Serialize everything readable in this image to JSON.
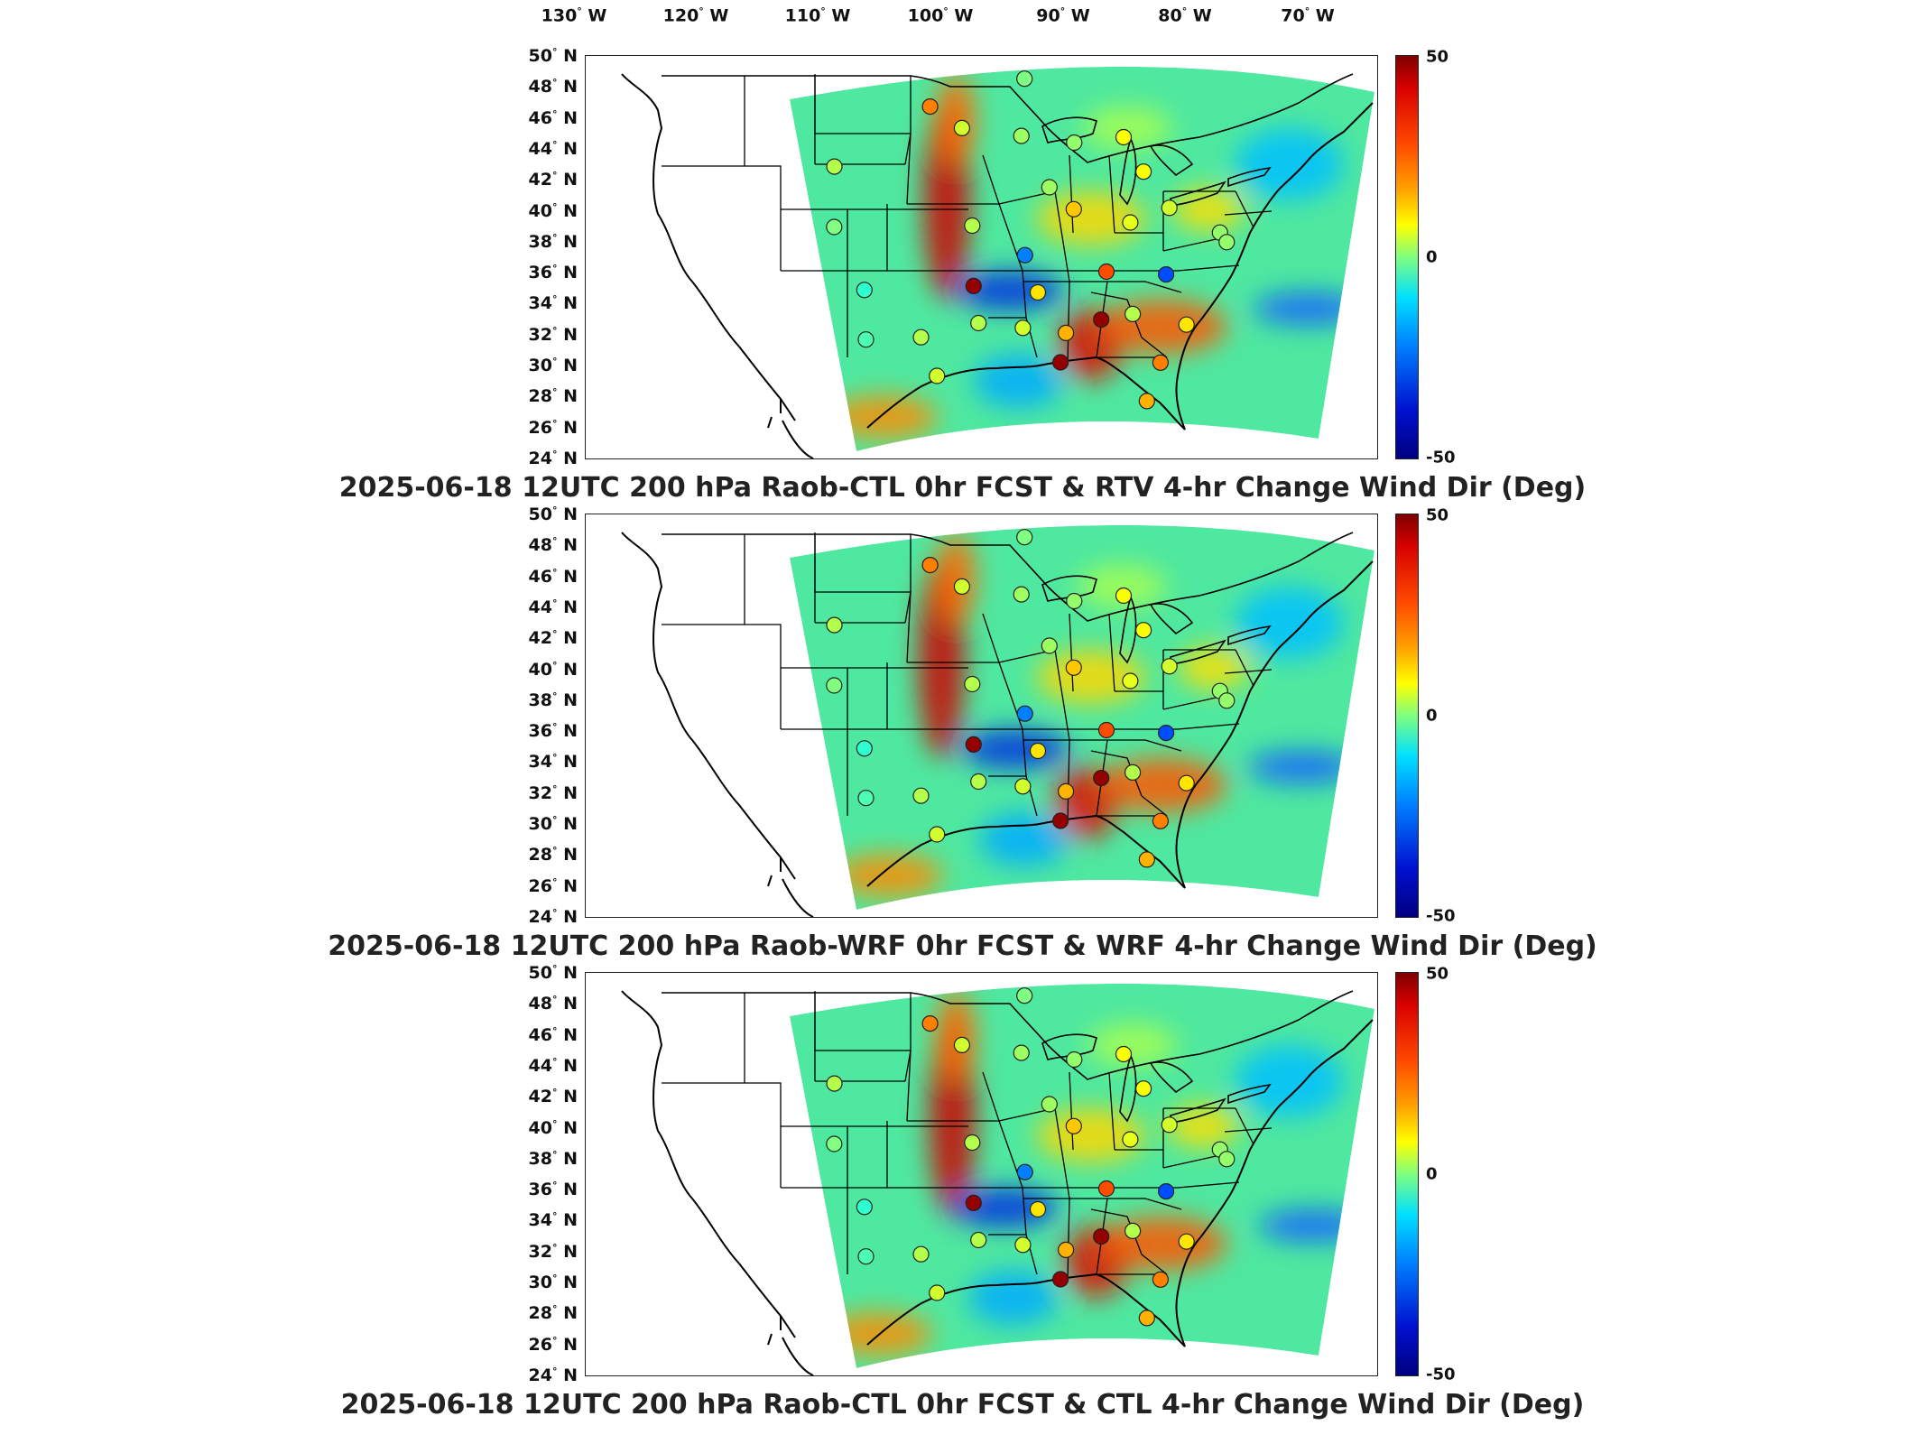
{
  "longitude_labels": [
    {
      "deg": "130",
      "hemi": "W"
    },
    {
      "deg": "120",
      "hemi": "W"
    },
    {
      "deg": "110",
      "hemi": "W"
    },
    {
      "deg": "100",
      "hemi": "W"
    },
    {
      "deg": "90",
      "hemi": "W"
    },
    {
      "deg": "80",
      "hemi": "W"
    },
    {
      "deg": "70",
      "hemi": "W"
    }
  ],
  "latitude_labels": [
    {
      "deg": "50",
      "hemi": "N"
    },
    {
      "deg": "48",
      "hemi": "N"
    },
    {
      "deg": "46",
      "hemi": "N"
    },
    {
      "deg": "44",
      "hemi": "N"
    },
    {
      "deg": "42",
      "hemi": "N"
    },
    {
      "deg": "40",
      "hemi": "N"
    },
    {
      "deg": "38",
      "hemi": "N"
    },
    {
      "deg": "36",
      "hemi": "N"
    },
    {
      "deg": "34",
      "hemi": "N"
    },
    {
      "deg": "32",
      "hemi": "N"
    },
    {
      "deg": "30",
      "hemi": "N"
    },
    {
      "deg": "28",
      "hemi": "N"
    },
    {
      "deg": "26",
      "hemi": "N"
    },
    {
      "deg": "24",
      "hemi": "N"
    }
  ],
  "colorbar": {
    "ticks": [
      "50",
      "0",
      "-50"
    ],
    "min": -50,
    "max": 50,
    "colormap": "jet"
  },
  "panels": [
    {
      "title": "2025-06-18 12UTC 200 hPa Raob-CTL 0hr FCST & RTV 4-hr Change Wind Dir (Deg)"
    },
    {
      "title": "2025-06-18 12UTC 200 hPa Raob-WRF 0hr FCST & WRF 4-hr Change Wind Dir (Deg)"
    },
    {
      "title": "2025-06-18 12UTC 200 hPa Raob-CTL 0hr FCST & CTL 4-hr Change Wind Dir (Deg)"
    }
  ],
  "map_extent": {
    "lon_min": -125,
    "lon_max": -65,
    "lat_min": 24,
    "lat_max": 50
  },
  "stations": [
    {
      "lon": -93.4,
      "lat": 48.6,
      "value": 0
    },
    {
      "lon": -100.8,
      "lat": 46.8,
      "value": 25
    },
    {
      "lon": -98.3,
      "lat": 45.4,
      "value": 8
    },
    {
      "lon": -93.6,
      "lat": 44.9,
      "value": 3
    },
    {
      "lon": -89.4,
      "lat": 44.5,
      "value": 2
    },
    {
      "lon": -85.5,
      "lat": 44.9,
      "value": 12
    },
    {
      "lon": -83.8,
      "lat": 42.7,
      "value": 12
    },
    {
      "lon": -108.5,
      "lat": 43.0,
      "value": 5
    },
    {
      "lon": -108.7,
      "lat": 39.1,
      "value": 0
    },
    {
      "lon": -97.5,
      "lat": 39.1,
      "value": 5
    },
    {
      "lon": -91.3,
      "lat": 41.6,
      "value": 3
    },
    {
      "lon": -89.3,
      "lat": 40.2,
      "value": 18
    },
    {
      "lon": -84.7,
      "lat": 39.4,
      "value": 10
    },
    {
      "lon": -81.6,
      "lat": 40.4,
      "value": 8
    },
    {
      "lon": -77.4,
      "lat": 38.9,
      "value": 2
    },
    {
      "lon": -76.8,
      "lat": 38.3,
      "value": 2
    },
    {
      "lon": -93.2,
      "lat": 37.2,
      "value": -25
    },
    {
      "lon": -86.5,
      "lat": 36.2,
      "value": 30
    },
    {
      "lon": -81.6,
      "lat": 36.1,
      "value": -30
    },
    {
      "lon": -106.4,
      "lat": 35.0,
      "value": -8
    },
    {
      "lon": -97.4,
      "lat": 35.2,
      "value": 48
    },
    {
      "lon": -92.1,
      "lat": 34.8,
      "value": 15
    },
    {
      "lon": -86.8,
      "lat": 33.1,
      "value": 48
    },
    {
      "lon": -84.2,
      "lat": 33.5,
      "value": 5
    },
    {
      "lon": -79.7,
      "lat": 32.9,
      "value": 15
    },
    {
      "lon": -89.7,
      "lat": 32.2,
      "value": 20
    },
    {
      "lon": -93.3,
      "lat": 32.5,
      "value": 8
    },
    {
      "lon": -97.0,
      "lat": 32.8,
      "value": 5
    },
    {
      "lon": -101.8,
      "lat": 31.9,
      "value": 5
    },
    {
      "lon": -106.4,
      "lat": 31.8,
      "value": -5
    },
    {
      "lon": -100.5,
      "lat": 29.4,
      "value": 8
    },
    {
      "lon": -90.1,
      "lat": 30.3,
      "value": 48
    },
    {
      "lon": -81.7,
      "lat": 30.4,
      "value": 25
    },
    {
      "lon": -82.7,
      "lat": 27.9,
      "value": 20
    }
  ]
}
